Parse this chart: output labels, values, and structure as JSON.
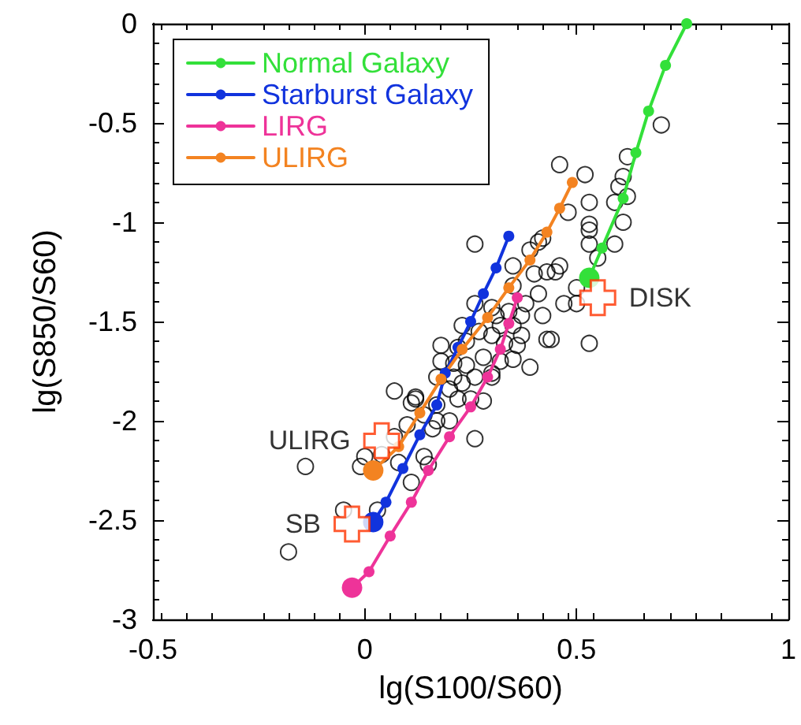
{
  "chart_data": {
    "type": "line",
    "xlabel": "lg(S100/S60)",
    "ylabel": "lg(S850/S60)",
    "xlim": [
      -0.5,
      1
    ],
    "ylim": [
      -3,
      0
    ],
    "xticks": [
      -0.5,
      0,
      0.5,
      1
    ],
    "yticks": [
      -3,
      -2.5,
      -2,
      -1.5,
      -1,
      -0.5,
      0
    ],
    "grid": false,
    "legend": "top left",
    "marker": "circle",
    "line_style": "solid",
    "series": [
      {
        "type": "scatter",
        "color": "#000000",
        "x": [
          0.7,
          0.46,
          0.52,
          0.53,
          0.48,
          0.53,
          0.53,
          0.53,
          0.59,
          0.61,
          0.59,
          0.62,
          0.61,
          0.6,
          0.62,
          0.55,
          0.5,
          0.47,
          0.5,
          0.53,
          0.26,
          0.35,
          0.42,
          0.41,
          0.39,
          0.46,
          0.45,
          0.43,
          0.4,
          0.35,
          0.41,
          0.38,
          0.42,
          0.37,
          0.34,
          0.3,
          0.26,
          0.23,
          0.43,
          0.44,
          0.36,
          0.33,
          0.3,
          0.27,
          0.24,
          0.22,
          0.18,
          0.18,
          0.21,
          0.24,
          0.28,
          0.32,
          0.35,
          0.3,
          0.26,
          0.23,
          0.2,
          0.22,
          0.25,
          0.28,
          0.3,
          0.07,
          0.12,
          0.11,
          0.14,
          0.17,
          0.17,
          0.2,
          0.16,
          0.1,
          0.07,
          0.0,
          -0.01,
          0.04,
          0.08,
          0.11,
          0.14,
          0.15,
          0.26,
          -0.14,
          -0.05,
          0.03,
          -0.18,
          0.39,
          0.37,
          0.32,
          0.35,
          0.31,
          0.21,
          0.17,
          0.12
        ],
        "values": [
          -0.51,
          -0.71,
          -0.76,
          -0.9,
          -0.95,
          -1.01,
          -1.04,
          -1.11,
          -1.11,
          -1.0,
          -0.9,
          -0.67,
          -0.77,
          -0.82,
          -0.87,
          -1.18,
          -1.33,
          -1.41,
          -1.41,
          -1.61,
          -1.11,
          -1.22,
          -1.08,
          -1.1,
          -1.14,
          -1.22,
          -1.25,
          -1.25,
          -1.26,
          -1.32,
          -1.36,
          -1.41,
          -1.47,
          -1.47,
          -1.45,
          -1.43,
          -1.41,
          -1.52,
          -1.59,
          -1.59,
          -1.62,
          -1.61,
          -1.57,
          -1.55,
          -1.6,
          -1.63,
          -1.62,
          -1.7,
          -1.71,
          -1.72,
          -1.68,
          -1.7,
          -1.69,
          -1.76,
          -1.78,
          -1.81,
          -1.84,
          -1.89,
          -1.89,
          -1.9,
          -1.78,
          -1.85,
          -1.88,
          -1.91,
          -1.97,
          -2.0,
          -1.92,
          -2.0,
          -2.04,
          -2.02,
          -2.08,
          -2.18,
          -2.23,
          -2.17,
          -2.21,
          -2.31,
          -2.18,
          -2.22,
          -2.09,
          -2.23,
          -2.45,
          -2.45,
          -2.66,
          -1.73,
          -1.57,
          -1.52,
          -1.52,
          -1.47,
          -1.78,
          -1.78,
          -1.89
        ]
      },
      {
        "name": "Normal Galaxy",
        "color": "#33e03a",
        "x": [
          0.53,
          0.56,
          0.61,
          0.64,
          0.67,
          0.71,
          0.76
        ],
        "values": [
          -1.28,
          -1.13,
          -0.88,
          -0.65,
          -0.44,
          -0.21,
          0
        ]
      },
      {
        "name": "Starburst Galaxy",
        "color": "#1133dd",
        "x": [
          0.02,
          0.05,
          0.09,
          0.13,
          0.17,
          0.19,
          0.22,
          0.25,
          0.28,
          0.31,
          0.34
        ],
        "values": [
          -2.51,
          -2.41,
          -2.24,
          -2.07,
          -1.92,
          -1.76,
          -1.63,
          -1.5,
          -1.36,
          -1.23,
          -1.07
        ]
      },
      {
        "name": "LIRG",
        "color": "#ee3399",
        "x": [
          -0.03,
          0.01,
          0.06,
          0.11,
          0.15,
          0.2,
          0.25,
          0.29,
          0.32,
          0.34,
          0.36
        ],
        "values": [
          -2.84,
          -2.76,
          -2.58,
          -2.41,
          -2.25,
          -2.08,
          -1.93,
          -1.78,
          -1.64,
          -1.51,
          -1.38
        ]
      },
      {
        "name": "ULIRG",
        "color": "#f38321",
        "x": [
          0.02,
          0.08,
          0.13,
          0.18,
          0.23,
          0.29,
          0.34,
          0.39,
          0.43,
          0.46,
          0.49
        ],
        "values": [
          -2.25,
          -2.13,
          -1.96,
          -1.79,
          -1.64,
          -1.48,
          -1.33,
          -1.19,
          -1.05,
          -0.93,
          -0.8
        ]
      }
    ],
    "annotations": [
      {
        "text": "DISK",
        "x": 0.55,
        "y": -1.38
      },
      {
        "text": "ULIRG",
        "x": 0.04,
        "y": -2.1
      },
      {
        "text": "SB",
        "x": -0.03,
        "y": -2.52
      }
    ]
  }
}
